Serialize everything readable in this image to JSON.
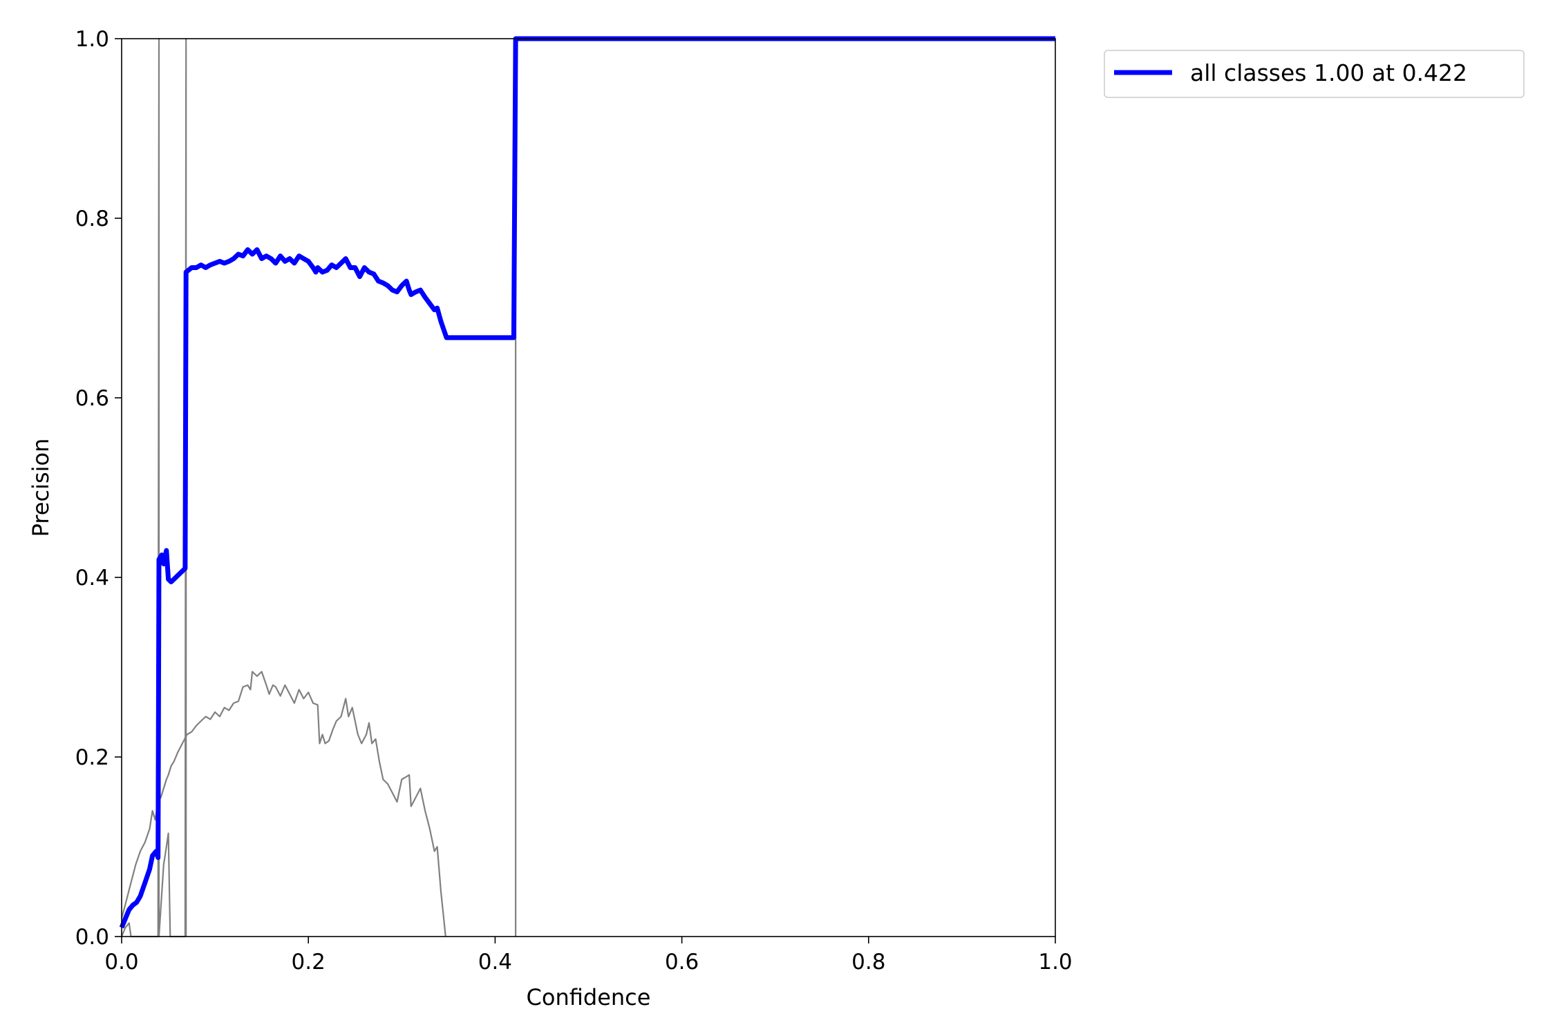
{
  "chart_data": {
    "type": "line",
    "title": "",
    "xlabel": "Confidence",
    "ylabel": "Precision",
    "xlim": [
      0,
      1
    ],
    "ylim": [
      0,
      1
    ],
    "grid": false,
    "legend_placement": "outside-top-right",
    "x_ticks": [
      "0.0",
      "0.2",
      "0.4",
      "0.6",
      "0.8",
      "1.0"
    ],
    "y_ticks": [
      "0.0",
      "0.2",
      "0.4",
      "0.6",
      "0.8",
      "1.0"
    ],
    "series": [
      {
        "name": "all classes 1.00 at 0.422",
        "color": "#0000ff",
        "points": [
          [
            0.0,
            0.01
          ],
          [
            0.004,
            0.02
          ],
          [
            0.008,
            0.03
          ],
          [
            0.012,
            0.035
          ],
          [
            0.016,
            0.038
          ],
          [
            0.02,
            0.045
          ],
          [
            0.025,
            0.06
          ],
          [
            0.03,
            0.075
          ],
          [
            0.033,
            0.09
          ],
          [
            0.037,
            0.095
          ],
          [
            0.039,
            0.088
          ],
          [
            0.04,
            0.42
          ],
          [
            0.043,
            0.425
          ],
          [
            0.045,
            0.415
          ],
          [
            0.048,
            0.43
          ],
          [
            0.05,
            0.398
          ],
          [
            0.053,
            0.395
          ],
          [
            0.058,
            0.4
          ],
          [
            0.063,
            0.405
          ],
          [
            0.068,
            0.41
          ],
          [
            0.069,
            0.74
          ],
          [
            0.075,
            0.745
          ],
          [
            0.08,
            0.745
          ],
          [
            0.085,
            0.748
          ],
          [
            0.09,
            0.745
          ],
          [
            0.095,
            0.748
          ],
          [
            0.1,
            0.75
          ],
          [
            0.105,
            0.752
          ],
          [
            0.11,
            0.75
          ],
          [
            0.115,
            0.752
          ],
          [
            0.12,
            0.755
          ],
          [
            0.125,
            0.76
          ],
          [
            0.13,
            0.758
          ],
          [
            0.135,
            0.765
          ],
          [
            0.14,
            0.76
          ],
          [
            0.145,
            0.765
          ],
          [
            0.15,
            0.755
          ],
          [
            0.155,
            0.758
          ],
          [
            0.16,
            0.755
          ],
          [
            0.165,
            0.75
          ],
          [
            0.17,
            0.758
          ],
          [
            0.175,
            0.752
          ],
          [
            0.18,
            0.755
          ],
          [
            0.185,
            0.75
          ],
          [
            0.19,
            0.758
          ],
          [
            0.195,
            0.755
          ],
          [
            0.2,
            0.752
          ],
          [
            0.205,
            0.745
          ],
          [
            0.208,
            0.74
          ],
          [
            0.21,
            0.745
          ],
          [
            0.215,
            0.74
          ],
          [
            0.22,
            0.742
          ],
          [
            0.225,
            0.748
          ],
          [
            0.23,
            0.745
          ],
          [
            0.235,
            0.75
          ],
          [
            0.24,
            0.755
          ],
          [
            0.245,
            0.745
          ],
          [
            0.25,
            0.745
          ],
          [
            0.255,
            0.735
          ],
          [
            0.26,
            0.745
          ],
          [
            0.265,
            0.74
          ],
          [
            0.27,
            0.738
          ],
          [
            0.275,
            0.73
          ],
          [
            0.28,
            0.728
          ],
          [
            0.285,
            0.725
          ],
          [
            0.29,
            0.72
          ],
          [
            0.295,
            0.718
          ],
          [
            0.3,
            0.725
          ],
          [
            0.305,
            0.73
          ],
          [
            0.308,
            0.72
          ],
          [
            0.31,
            0.715
          ],
          [
            0.315,
            0.718
          ],
          [
            0.32,
            0.72
          ],
          [
            0.325,
            0.712
          ],
          [
            0.33,
            0.705
          ],
          [
            0.335,
            0.698
          ],
          [
            0.338,
            0.7
          ],
          [
            0.342,
            0.685
          ],
          [
            0.348,
            0.667
          ],
          [
            0.42,
            0.667
          ],
          [
            0.422,
            1.0
          ],
          [
            1.0,
            1.0
          ]
        ]
      },
      {
        "name": "",
        "color": "#808080",
        "points": [
          [
            0.0,
            0.02
          ],
          [
            0.005,
            0.04
          ],
          [
            0.01,
            0.06
          ],
          [
            0.015,
            0.08
          ],
          [
            0.02,
            0.095
          ],
          [
            0.025,
            0.105
          ],
          [
            0.03,
            0.12
          ],
          [
            0.033,
            0.14
          ],
          [
            0.036,
            0.13
          ],
          [
            0.039,
            0.15
          ],
          [
            0.042,
            0.155
          ],
          [
            0.045,
            0.165
          ],
          [
            0.048,
            0.175
          ],
          [
            0.05,
            0.18
          ],
          [
            0.053,
            0.19
          ],
          [
            0.056,
            0.195
          ],
          [
            0.06,
            0.205
          ],
          [
            0.065,
            0.215
          ],
          [
            0.07,
            0.225
          ],
          [
            0.075,
            0.228
          ],
          [
            0.08,
            0.235
          ],
          [
            0.085,
            0.24
          ],
          [
            0.09,
            0.245
          ],
          [
            0.095,
            0.242
          ],
          [
            0.1,
            0.25
          ],
          [
            0.105,
            0.245
          ],
          [
            0.11,
            0.255
          ],
          [
            0.115,
            0.252
          ],
          [
            0.12,
            0.26
          ],
          [
            0.125,
            0.262
          ],
          [
            0.13,
            0.278
          ],
          [
            0.135,
            0.28
          ],
          [
            0.138,
            0.275
          ],
          [
            0.14,
            0.295
          ],
          [
            0.145,
            0.29
          ],
          [
            0.15,
            0.295
          ],
          [
            0.155,
            0.28
          ],
          [
            0.158,
            0.27
          ],
          [
            0.162,
            0.28
          ],
          [
            0.165,
            0.278
          ],
          [
            0.17,
            0.268
          ],
          [
            0.175,
            0.28
          ],
          [
            0.18,
            0.27
          ],
          [
            0.185,
            0.26
          ],
          [
            0.19,
            0.275
          ],
          [
            0.195,
            0.265
          ],
          [
            0.2,
            0.272
          ],
          [
            0.205,
            0.26
          ],
          [
            0.21,
            0.258
          ],
          [
            0.212,
            0.215
          ],
          [
            0.215,
            0.225
          ],
          [
            0.218,
            0.215
          ],
          [
            0.222,
            0.218
          ],
          [
            0.226,
            0.23
          ],
          [
            0.23,
            0.24
          ],
          [
            0.235,
            0.245
          ],
          [
            0.24,
            0.265
          ],
          [
            0.243,
            0.245
          ],
          [
            0.247,
            0.255
          ],
          [
            0.25,
            0.24
          ],
          [
            0.253,
            0.225
          ],
          [
            0.257,
            0.215
          ],
          [
            0.262,
            0.225
          ],
          [
            0.265,
            0.238
          ],
          [
            0.268,
            0.215
          ],
          [
            0.272,
            0.22
          ],
          [
            0.276,
            0.195
          ],
          [
            0.28,
            0.175
          ],
          [
            0.285,
            0.17
          ],
          [
            0.29,
            0.16
          ],
          [
            0.295,
            0.15
          ],
          [
            0.3,
            0.175
          ],
          [
            0.305,
            0.178
          ],
          [
            0.308,
            0.18
          ],
          [
            0.31,
            0.145
          ],
          [
            0.315,
            0.155
          ],
          [
            0.32,
            0.165
          ],
          [
            0.325,
            0.14
          ],
          [
            0.33,
            0.12
          ],
          [
            0.335,
            0.095
          ],
          [
            0.338,
            0.1
          ],
          [
            0.342,
            0.05
          ],
          [
            0.347,
            0.0
          ]
        ]
      },
      {
        "name": "",
        "color": "#808080",
        "points": [
          [
            0.0,
            0.0
          ],
          [
            0.004,
            0.01
          ],
          [
            0.008,
            0.015
          ],
          [
            0.01,
            0.0
          ],
          [
            0.039,
            0.0
          ],
          [
            0.04,
            1.0
          ],
          [
            0.04,
            0.0
          ],
          [
            0.045,
            0.08
          ],
          [
            0.048,
            0.1
          ],
          [
            0.05,
            0.115
          ],
          [
            0.052,
            0.0
          ],
          [
            0.068,
            0.0
          ],
          [
            0.069,
            1.0
          ],
          [
            0.069,
            0.0
          ]
        ]
      },
      {
        "name": "",
        "color": "#808080",
        "points": [
          [
            0.422,
            0.0
          ],
          [
            0.422,
            1.0
          ]
        ]
      }
    ]
  }
}
